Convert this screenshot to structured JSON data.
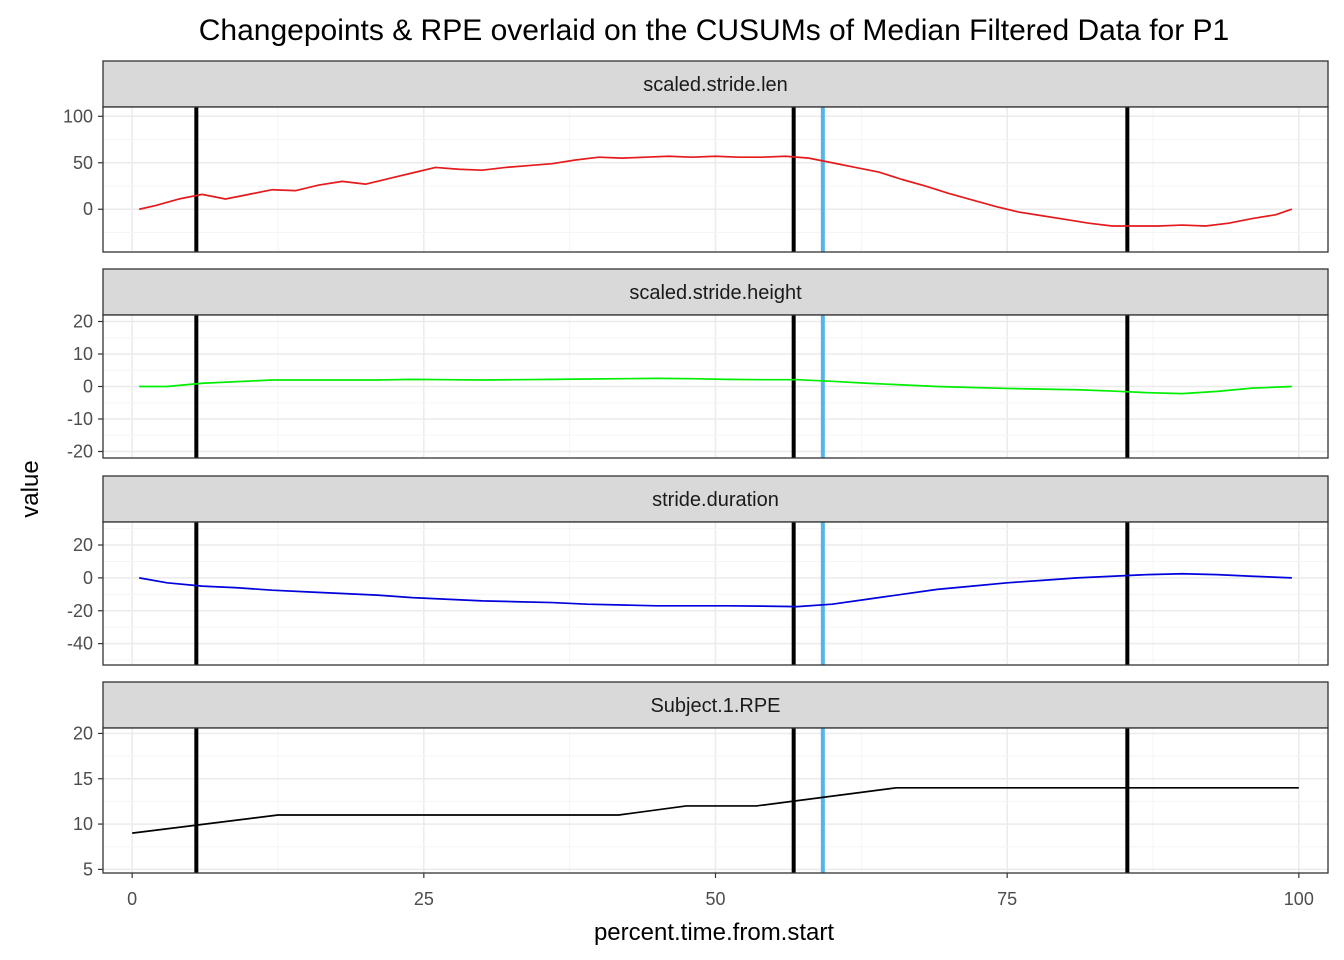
{
  "chart_data": {
    "type": "line",
    "title": "Changepoints & RPE overlaid on the CUSUMs of Median Filtered Data for P1",
    "xlabel": "percent.time.from.start",
    "ylabel": "value",
    "xlim": [
      -2.5,
      102.5
    ],
    "x_ticks": [
      0,
      25,
      50,
      75,
      100
    ],
    "x_tick_labels": [
      "0",
      "25",
      "50",
      "75",
      "100"
    ],
    "grid": true,
    "changepoints_black": [
      5.5,
      56.7,
      85.3
    ],
    "changepoint_blue": 59.2,
    "colors": {
      "changepoint": "#000000",
      "rpe_marker": "#56B4E9",
      "strip_fill": "#d9d9d9",
      "grid_major": "#ebebeb",
      "grid_minor": "#f5f5f5"
    },
    "panels": [
      {
        "name": "scaled.stride.len",
        "color": "#e41a1c",
        "ylim": [
          -46,
          110
        ],
        "y_ticks": [
          0,
          50,
          100
        ],
        "y_tick_labels": [
          "0",
          "50",
          "100"
        ],
        "x": [
          0.6,
          2,
          4,
          6,
          8,
          10,
          12,
          14,
          16,
          18,
          20,
          22,
          24,
          26,
          28,
          30,
          32,
          34,
          36,
          38,
          40,
          42,
          44,
          46,
          48,
          50,
          52,
          54,
          56,
          58,
          60,
          62,
          64,
          66,
          68,
          70,
          72,
          74,
          76,
          78,
          80,
          82,
          84,
          86,
          88,
          90,
          92,
          94,
          96,
          98,
          99.4
        ],
        "y": [
          0,
          4,
          11,
          16,
          11,
          16,
          21,
          20,
          26,
          30,
          27,
          33,
          39,
          45,
          43,
          42,
          45,
          47,
          49,
          53,
          56,
          55,
          56,
          57,
          56,
          57,
          56,
          56,
          57,
          55,
          50,
          45,
          40,
          32,
          25,
          17,
          10,
          3,
          -3,
          -7,
          -11,
          -15,
          -18,
          -18,
          -18,
          -17,
          -18,
          -15,
          -10,
          -6,
          0
        ]
      },
      {
        "name": "scaled.stride.height",
        "color": "#00ee00",
        "ylim": [
          -22,
          22
        ],
        "y_ticks": [
          -20,
          -10,
          0,
          10,
          20
        ],
        "y_tick_labels": [
          "-20",
          "-10",
          "0",
          "10",
          "20"
        ],
        "x": [
          0.6,
          3,
          6,
          9,
          12,
          15,
          18,
          21,
          24,
          27,
          30,
          33,
          36,
          39,
          42,
          45,
          48,
          51,
          54,
          57,
          60,
          63,
          66,
          69,
          72,
          75,
          78,
          81,
          84,
          87,
          90,
          93,
          96,
          99.4
        ],
        "y": [
          0,
          0,
          1,
          1.5,
          2,
          2,
          2,
          2,
          2.2,
          2.1,
          2,
          2.1,
          2.2,
          2.3,
          2.4,
          2.5,
          2.4,
          2.2,
          2.1,
          2.1,
          1.6,
          1,
          0.5,
          0,
          -0.3,
          -0.6,
          -0.8,
          -1,
          -1.4,
          -1.9,
          -2.2,
          -1.5,
          -0.5,
          0
        ]
      },
      {
        "name": "stride.duration",
        "color": "#0000dd",
        "ylim": [
          -53,
          34
        ],
        "y_ticks": [
          -40,
          -20,
          0,
          20
        ],
        "y_tick_labels": [
          "-40",
          "-20",
          "0",
          "20"
        ],
        "x": [
          0.6,
          3,
          6,
          9,
          12,
          15,
          18,
          21,
          24,
          27,
          30,
          33,
          36,
          39,
          42,
          45,
          48,
          51,
          54,
          57,
          60,
          63,
          66,
          69,
          72,
          75,
          78,
          81,
          84,
          87,
          90,
          93,
          96,
          99.4
        ],
        "y": [
          0,
          -3,
          -5,
          -6,
          -7.5,
          -8.5,
          -9.5,
          -10.5,
          -12,
          -13,
          -14,
          -14.5,
          -15,
          -16,
          -16.5,
          -17,
          -17,
          -17,
          -17.2,
          -17.5,
          -16,
          -13,
          -10,
          -7,
          -5,
          -3,
          -1.5,
          0,
          1,
          2,
          2.5,
          2,
          1,
          0
        ]
      },
      {
        "name": "Subject.1.RPE",
        "color": "#000000",
        "ylim": [
          4.6,
          20.6
        ],
        "y_ticks": [
          5,
          10,
          15,
          20
        ],
        "y_tick_labels": [
          "5",
          "10",
          "15",
          "20"
        ],
        "x": [
          0,
          12.5,
          41.7,
          47.5,
          53.5,
          65.5,
          100
        ],
        "y": [
          9,
          11,
          11,
          12,
          12,
          14,
          14
        ]
      }
    ]
  }
}
